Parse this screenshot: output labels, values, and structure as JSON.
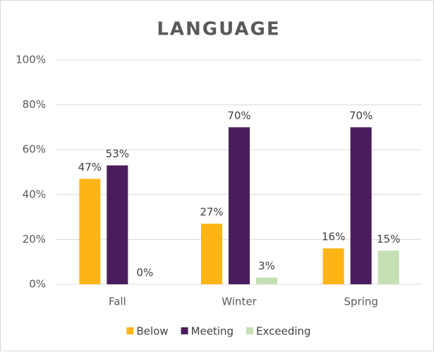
{
  "chart_data": {
    "type": "bar",
    "title": "LANGUAGE",
    "categories": [
      "Fall",
      "Winter",
      "Spring"
    ],
    "series": [
      {
        "name": "Below",
        "color": "#fdb515",
        "values": [
          47,
          27,
          16
        ],
        "value_labels": [
          "47%",
          "27%",
          "16%"
        ]
      },
      {
        "name": "Meeting",
        "color": "#4b1c5c",
        "values": [
          53,
          70,
          70
        ],
        "value_labels": [
          "53%",
          "70%",
          "70%"
        ]
      },
      {
        "name": "Exceeding",
        "color": "#c5e0b4",
        "values": [
          0,
          3,
          15
        ],
        "value_labels": [
          "0%",
          "3%",
          "15%"
        ]
      }
    ],
    "ylim": [
      0,
      100
    ],
    "yticks": [
      {
        "value": 0,
        "label": "0%"
      },
      {
        "value": 20,
        "label": "20%"
      },
      {
        "value": 40,
        "label": "40%"
      },
      {
        "value": 60,
        "label": "60%"
      },
      {
        "value": 80,
        "label": "80%"
      },
      {
        "value": 100,
        "label": "100%"
      }
    ],
    "grid": true,
    "legend": "bottom"
  }
}
